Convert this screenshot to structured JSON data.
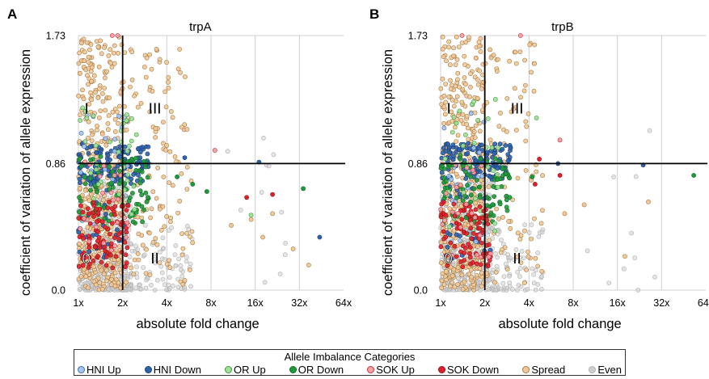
{
  "panels": [
    {
      "letter": "A",
      "title": "trpA"
    },
    {
      "letter": "B",
      "title": "trpB"
    }
  ],
  "legend": {
    "title": "Allele Imbalance Categories",
    "items": [
      {
        "label": "HNI Up",
        "color": "#a9c4e8",
        "edge": "#3f6fb0"
      },
      {
        "label": "HNI Down",
        "color": "#2d63ad",
        "edge": "#1c3f70"
      },
      {
        "label": "OR Up",
        "color": "#a4df9c",
        "edge": "#3a9a3a"
      },
      {
        "label": "OR Down",
        "color": "#1f9a3a",
        "edge": "#146a28"
      },
      {
        "label": "SOK Up",
        "color": "#f5a3a8",
        "edge": "#c0323a"
      },
      {
        "label": "SOK Down",
        "color": "#e0202a",
        "edge": "#951318"
      },
      {
        "label": "Spread",
        "color": "#efc99a",
        "edge": "#a87a42"
      },
      {
        "label": "Even",
        "color": "#cfcfcf",
        "edge": "#b0b0b0"
      }
    ]
  },
  "chart_data": [
    {
      "type": "scatter",
      "title": "trpA",
      "xlabel": "absolute fold change",
      "ylabel": "coefficient of variation of allele expression",
      "x_scale": "log2",
      "xlim": [
        1,
        64
      ],
      "ylim": [
        0,
        1.73
      ],
      "x_ticks": [
        "1x",
        "2x",
        "4x",
        "8x",
        "16x",
        "32x",
        "64x"
      ],
      "y_ticks": [
        "0.0",
        "0.86",
        "1.73"
      ],
      "thresholds": {
        "x": 2,
        "y": 0.86
      },
      "quadrant_labels": [
        {
          "label": "0",
          "x": 1.05,
          "y": 0.18
        },
        {
          "label": "I",
          "x": 1.1,
          "y": 1.2
        },
        {
          "label": "II",
          "x": 3.1,
          "y": 0.18
        },
        {
          "label": "III",
          "x": 3.0,
          "y": 1.2
        }
      ],
      "grid": "vertical",
      "series": [
        {
          "name": "Even",
          "clusters": [
            {
              "x": [
                1,
                2.3
              ],
              "y": [
                0,
                0.75
              ],
              "n": 340
            },
            {
              "x": [
                2,
                6
              ],
              "y": [
                0,
                0.45
              ],
              "n": 90
            },
            {
              "x": [
                6,
                40
              ],
              "y": [
                0,
                1.3
              ],
              "n": 12
            }
          ]
        },
        {
          "name": "Spread",
          "clusters": [
            {
              "x": [
                1,
                2
              ],
              "y": [
                0,
                0.86
              ],
              "n": 260
            },
            {
              "x": [
                1,
                2
              ],
              "y": [
                0.86,
                1.73
              ],
              "n": 150
            },
            {
              "x": [
                2,
                5.5
              ],
              "y": [
                0.86,
                1.65
              ],
              "n": 60
            },
            {
              "x": [
                2,
                6
              ],
              "y": [
                0,
                0.86
              ],
              "n": 70
            }
          ],
          "points": [
            [
              37,
              0.17
            ],
            [
              29,
              0.28
            ],
            [
              21,
              0.52
            ],
            [
              18,
              0.36
            ],
            [
              15,
              0.48
            ],
            [
              11,
              0.44
            ]
          ]
        },
        {
          "name": "HNI Down",
          "clusters": [
            {
              "x": [
                1,
                3
              ],
              "y": [
                0.72,
                1.0
              ],
              "n": 130
            },
            {
              "x": [
                1,
                2.2
              ],
              "y": [
                0.2,
                0.72
              ],
              "n": 30
            }
          ],
          "points": [
            [
              5.3,
              0.9
            ],
            [
              17,
              0.87
            ],
            [
              44,
              0.36
            ]
          ]
        },
        {
          "name": "HNI Up",
          "clusters": [
            {
              "x": [
                1,
                2.2
              ],
              "y": [
                0.3,
                1.2
              ],
              "n": 25
            }
          ]
        },
        {
          "name": "OR Down",
          "clusters": [
            {
              "x": [
                1,
                3
              ],
              "y": [
                0.45,
                0.92
              ],
              "n": 90
            }
          ],
          "points": [
            [
              4.7,
              0.77
            ],
            [
              6,
              0.72
            ],
            [
              7.5,
              0.67
            ],
            [
              34,
              0.69
            ]
          ]
        },
        {
          "name": "OR Up",
          "clusters": [
            {
              "x": [
                1,
                2.5
              ],
              "y": [
                0.35,
                1.3
              ],
              "n": 40
            }
          ],
          "points": [
            [
              15,
              0.51
            ]
          ]
        },
        {
          "name": "SOK Down",
          "clusters": [
            {
              "x": [
                1,
                2.2
              ],
              "y": [
                0.15,
                0.6
              ],
              "n": 90
            }
          ],
          "points": [
            [
              14,
              0.63
            ],
            [
              21,
              0.65
            ]
          ]
        },
        {
          "name": "SOK Up",
          "clusters": [
            {
              "x": [
                1,
                2.2
              ],
              "y": [
                0.2,
                0.9
              ],
              "n": 25
            }
          ],
          "points": [
            [
              1.7,
              1.73
            ],
            [
              1.85,
              1.73
            ],
            [
              8.5,
              0.95
            ]
          ]
        }
      ]
    },
    {
      "type": "scatter",
      "title": "trpB",
      "xlabel": "absolute fold change",
      "ylabel": "coefficient of variation of allele expression",
      "x_scale": "log2",
      "xlim": [
        1,
        64
      ],
      "ylim": [
        0,
        1.73
      ],
      "x_ticks": [
        "1x",
        "2x",
        "4x",
        "8x",
        "16x",
        "32x",
        "64x"
      ],
      "y_ticks": [
        "0.0",
        "0.86",
        "1.73"
      ],
      "thresholds": {
        "x": 2,
        "y": 0.86
      },
      "quadrant_labels": [
        {
          "label": "0",
          "x": 1.05,
          "y": 0.18
        },
        {
          "label": "I",
          "x": 1.1,
          "y": 1.2
        },
        {
          "label": "II",
          "x": 3.1,
          "y": 0.18
        },
        {
          "label": "III",
          "x": 3.0,
          "y": 1.2
        }
      ],
      "grid": "vertical",
      "series": [
        {
          "name": "Even",
          "clusters": [
            {
              "x": [
                1,
                2.3
              ],
              "y": [
                0,
                0.75
              ],
              "n": 340
            },
            {
              "x": [
                2,
                5
              ],
              "y": [
                0,
                0.45
              ],
              "n": 80
            },
            {
              "x": [
                5,
                30
              ],
              "y": [
                0,
                1.2
              ],
              "n": 10
            }
          ]
        },
        {
          "name": "Spread",
          "clusters": [
            {
              "x": [
                1,
                2
              ],
              "y": [
                0,
                0.86
              ],
              "n": 260
            },
            {
              "x": [
                1,
                2
              ],
              "y": [
                0.86,
                1.73
              ],
              "n": 150
            },
            {
              "x": [
                2,
                4.5
              ],
              "y": [
                0.86,
                1.7
              ],
              "n": 50
            },
            {
              "x": [
                2,
                5
              ],
              "y": [
                0,
                0.86
              ],
              "n": 55
            }
          ],
          "points": [
            [
              18,
              0.23
            ],
            [
              9.5,
              0.58
            ],
            [
              26,
              0.6
            ],
            [
              7,
              0.52
            ]
          ]
        },
        {
          "name": "HNI Down",
          "clusters": [
            {
              "x": [
                1,
                3
              ],
              "y": [
                0.75,
                1.0
              ],
              "n": 130
            },
            {
              "x": [
                1,
                2.2
              ],
              "y": [
                0.2,
                0.72
              ],
              "n": 30
            }
          ],
          "points": [
            [
              6.3,
              0.86
            ],
            [
              24,
              0.85
            ]
          ]
        },
        {
          "name": "HNI Up",
          "clusters": [
            {
              "x": [
                1,
                2.2
              ],
              "y": [
                0.3,
                1.2
              ],
              "n": 25
            }
          ]
        },
        {
          "name": "OR Down",
          "clusters": [
            {
              "x": [
                1,
                3
              ],
              "y": [
                0.45,
                0.92
              ],
              "n": 90
            }
          ],
          "points": [
            [
              4.2,
              0.77
            ],
            [
              53,
              0.78
            ]
          ]
        },
        {
          "name": "OR Up",
          "clusters": [
            {
              "x": [
                1,
                2.5
              ],
              "y": [
                0.35,
                1.3
              ],
              "n": 40
            }
          ],
          "points": [
            [
              4.5,
              1.17
            ]
          ]
        },
        {
          "name": "SOK Down",
          "clusters": [
            {
              "x": [
                1,
                2.2
              ],
              "y": [
                0.15,
                0.6
              ],
              "n": 90
            }
          ],
          "points": [
            [
              6.5,
              0.78
            ],
            [
              4.7,
              0.89
            ],
            [
              4.4,
              0.72
            ]
          ]
        },
        {
          "name": "SOK Up",
          "clusters": [
            {
              "x": [
                1,
                2.2
              ],
              "y": [
                0.2,
                0.9
              ],
              "n": 25
            }
          ],
          "points": [
            [
              1.4,
              1.73
            ],
            [
              3.5,
              1.73
            ],
            [
              6.5,
              1.02
            ]
          ]
        }
      ]
    }
  ]
}
